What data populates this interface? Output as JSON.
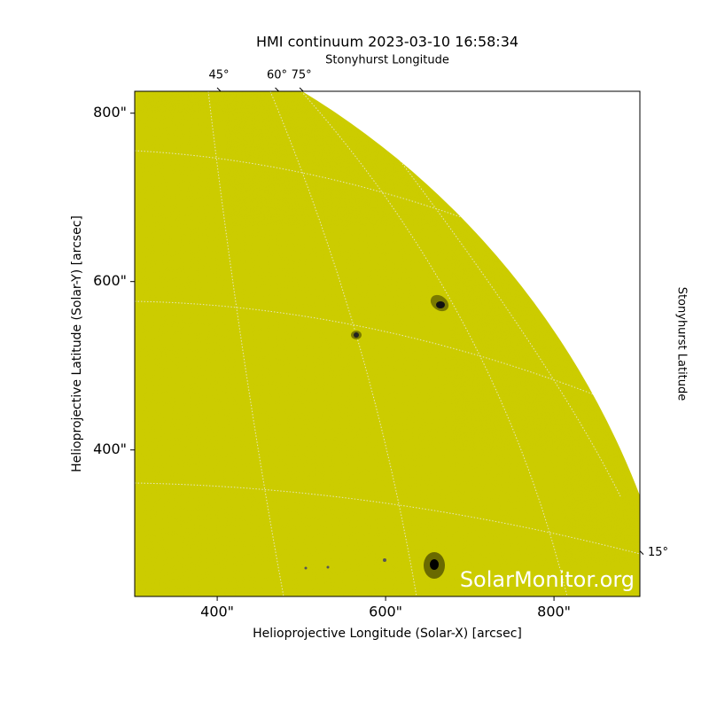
{
  "chart_data": {
    "type": "solar-map",
    "title": "HMI continuum 2023-03-10 16:58:34",
    "x_label": "Helioprojective Longitude (Solar-X) [arcsec]",
    "y_label": "Helioprojective Latitude (Solar-Y) [arcsec]",
    "top_axis_label": "Stonyhurst Longitude",
    "right_axis_label": "Stonyhurst Latitude",
    "watermark": "SolarMonitor.org",
    "xlim": [
      302,
      902
    ],
    "ylim": [
      226,
      826
    ],
    "xticks": [
      {
        "value": 400,
        "label": "400\""
      },
      {
        "value": 600,
        "label": "600\""
      },
      {
        "value": 800,
        "label": "800\""
      }
    ],
    "yticks": [
      {
        "value": 400,
        "label": "400\""
      },
      {
        "value": 600,
        "label": "600\""
      },
      {
        "value": 800,
        "label": "800\""
      }
    ],
    "top_ticks": [
      {
        "value": 402,
        "label": "45°"
      },
      {
        "value": 471,
        "label": "60°"
      },
      {
        "value": 500,
        "label": "75°"
      }
    ],
    "right_ticks": [
      {
        "value": 278,
        "label": "15°"
      }
    ],
    "solar_radius": 966,
    "color": "#cccc00"
  }
}
